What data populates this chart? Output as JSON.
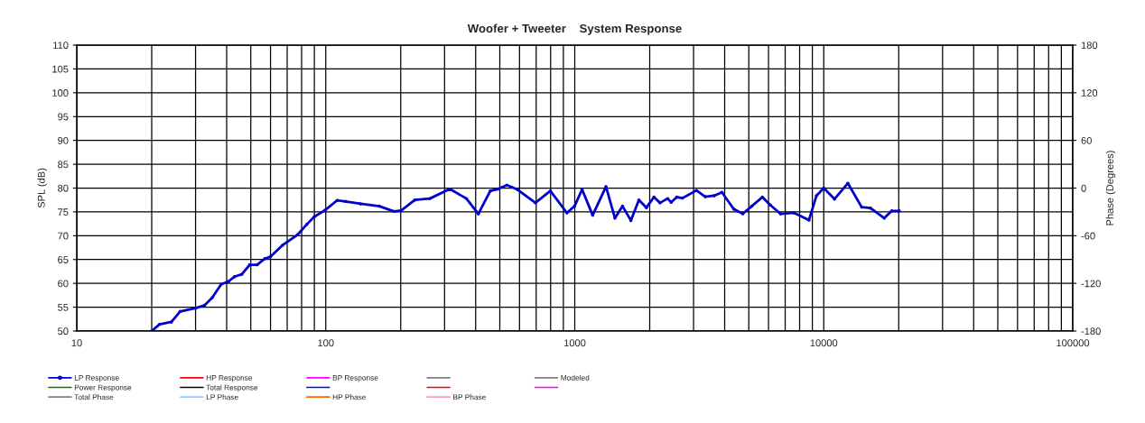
{
  "chart_data": {
    "type": "line",
    "title": "Woofer + Tweeter    System Response",
    "ylabel": "SPL (dB)",
    "y2label": "Phase (Degrees)",
    "log": "x",
    "grid": true,
    "legend": "bottom",
    "marker": "circle",
    "line_style": "solid",
    "xlim": [
      10,
      100000
    ],
    "xticks": [
      10,
      {
        "value": 20,
        "label": null
      },
      {
        "value": 30,
        "label": null
      },
      {
        "value": 40,
        "label": null
      },
      {
        "value": 50,
        "label": null
      },
      {
        "value": 60,
        "label": null
      },
      {
        "value": 70,
        "label": null
      },
      {
        "value": 80,
        "label": null
      },
      {
        "value": 90,
        "label": null
      },
      100,
      {
        "value": 200,
        "label": null
      },
      {
        "value": 300,
        "label": null
      },
      {
        "value": 400,
        "label": null
      },
      {
        "value": 500,
        "label": null
      },
      {
        "value": 600,
        "label": null
      },
      {
        "value": 700,
        "label": null
      },
      {
        "value": 800,
        "label": null
      },
      {
        "value": 900,
        "label": null
      },
      1000,
      {
        "value": 2000,
        "label": null
      },
      {
        "value": 3000,
        "label": null
      },
      {
        "value": 4000,
        "label": null
      },
      {
        "value": 5000,
        "label": null
      },
      {
        "value": 6000,
        "label": null
      },
      {
        "value": 7000,
        "label": null
      },
      {
        "value": 8000,
        "label": null
      },
      {
        "value": 9000,
        "label": null
      },
      10000,
      {
        "value": 20000,
        "label": null
      },
      {
        "value": 30000,
        "label": null
      },
      {
        "value": 40000,
        "label": null
      },
      {
        "value": 50000,
        "label": null
      },
      {
        "value": 60000,
        "label": null
      },
      {
        "value": 70000,
        "label": null
      },
      {
        "value": 80000,
        "label": null
      },
      {
        "value": 90000,
        "label": null
      },
      100000
    ],
    "ylim": [
      50,
      110
    ],
    "yticks": [
      50,
      55,
      60,
      65,
      70,
      75,
      80,
      85,
      90,
      95,
      100,
      105,
      110
    ],
    "y2lim": [
      -180,
      180
    ],
    "y2ticks": [
      -180,
      -120,
      -60,
      0,
      60,
      120,
      180
    ],
    "series": [
      {
        "name": "LP Response",
        "color": "#0000cc",
        "x": [
          20,
          21.5,
          24,
          26,
          30,
          32.6,
          35,
          38,
          40.7,
          43,
          46,
          49.5,
          53,
          57,
          60,
          67,
          77,
          84,
          90,
          99,
          111,
          120,
          138,
          164,
          188,
          201,
          228,
          262,
          315,
          367,
          410,
          458,
          491,
          534,
          588,
          695,
          798,
          930,
          998,
          1070,
          1180,
          1335,
          1450,
          1556,
          1680,
          1810,
          1940,
          2080,
          2200,
          2360,
          2440,
          2570,
          2710,
          3080,
          3340,
          3630,
          3900,
          4350,
          4730,
          5140,
          5670,
          6080,
          6700,
          7590,
          8720,
          9350,
          10000,
          11050,
          12500,
          14200,
          15400,
          17500,
          18750,
          20100
        ],
        "values": [
          50,
          51.4,
          51.9,
          54.1,
          54.8,
          55.4,
          57,
          59.8,
          60.4,
          61.4,
          61.9,
          63.9,
          63.9,
          65.2,
          65.6,
          68,
          70.2,
          72.4,
          74,
          75.3,
          77.4,
          77.2,
          76.7,
          76.2,
          75.1,
          75.3,
          77.5,
          77.8,
          79.8,
          77.8,
          74.6,
          79.4,
          79.8,
          80.6,
          79.7,
          76.9,
          79.4,
          74.8,
          76.2,
          79.7,
          74.3,
          80.3,
          73.7,
          76.2,
          73.2,
          77.5,
          75.9,
          78.1,
          76.9,
          77.8,
          77,
          78.1,
          77.9,
          79.5,
          78.2,
          78.4,
          79.1,
          75.6,
          74.6,
          76.2,
          78.1,
          76.5,
          74.6,
          74.8,
          73.3,
          78.4,
          80,
          77.7,
          81,
          76,
          75.8,
          73.7,
          75.2,
          75.2
        ]
      },
      {
        "name": "HP Response",
        "color": "#ff0000"
      },
      {
        "name": "BP Response",
        "color": "#ff00ff"
      },
      {
        "color": "#808080"
      },
      {
        "name": "Modeled",
        "color": "#808080"
      },
      {
        "name": "Power Response",
        "color": "#008000"
      },
      {
        "name": "Total Response",
        "color": "#000000"
      },
      {
        "color": "#0000ff"
      },
      {
        "color": "#ff0000"
      },
      {
        "color": "#ff00ff"
      },
      {
        "name": "Total Phase",
        "color": "#808080"
      },
      {
        "name": "LP Phase",
        "color": "#99ccff"
      },
      {
        "name": "HP Phase",
        "color": "#ff6600"
      },
      {
        "name": "BP Phase",
        "color": "#ff99cc"
      }
    ]
  }
}
